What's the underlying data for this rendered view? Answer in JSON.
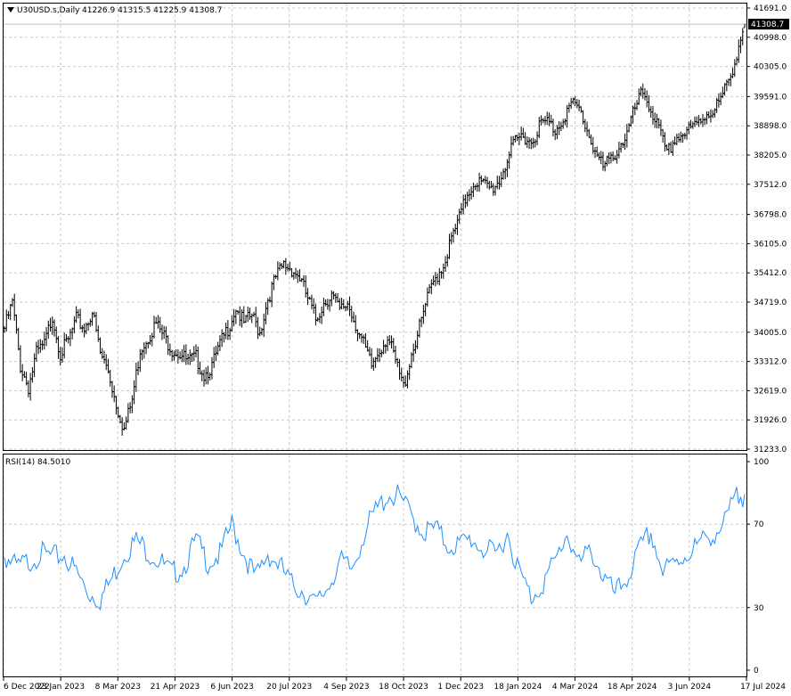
{
  "symbol_title": "U30USD.s,Daily",
  "ohlc_text": "41226.9 41315.5 41225.9 41308.7",
  "last_price_label": "41308.7",
  "rsi_title": "RSI(14) 84.5010",
  "colors": {
    "bars": "#000000",
    "rsi_line": "#1e90ff",
    "grid": "#c8c8c8",
    "price_tag_bg": "#000000",
    "price_tag_text": "#ffffff"
  },
  "chart_data": [
    {
      "type": "ohlc",
      "title": "U30USD.s,Daily",
      "y_ticks": [
        "41691.0",
        "40998.0",
        "40305.0",
        "39591.0",
        "38898.0",
        "38205.0",
        "37512.0",
        "36798.0",
        "36105.0",
        "35412.0",
        "34719.0",
        "34005.0",
        "33312.0",
        "32619.0",
        "31926.0",
        "31233.0"
      ],
      "ylim": [
        31233.0,
        41691.0
      ],
      "x_ticks": [
        "6 Dec 2022",
        "23 Jan 2023",
        "8 Mar 2023",
        "21 Apr 2023",
        "6 Jun 2023",
        "20 Jul 2023",
        "4 Sep 2023",
        "18 Oct 2023",
        "1 Dec 2023",
        "18 Jan 2024",
        "4 Mar 2024",
        "18 Apr 2024",
        "3 Jun 2024",
        "17 Jul 2024"
      ],
      "grid": true,
      "last": {
        "open": 41226.9,
        "high": 41315.5,
        "low": 41225.9,
        "close": 41308.7
      },
      "anchors": [
        [
          0,
          34100
        ],
        [
          4,
          34700
        ],
        [
          8,
          33200
        ],
        [
          12,
          32700
        ],
        [
          16,
          33500
        ],
        [
          20,
          33700
        ],
        [
          24,
          34400
        ],
        [
          28,
          33500
        ],
        [
          32,
          33800
        ],
        [
          36,
          34300
        ],
        [
          40,
          34100
        ],
        [
          44,
          34500
        ],
        [
          48,
          33500
        ],
        [
          52,
          33100
        ],
        [
          56,
          32300
        ],
        [
          60,
          31700
        ],
        [
          64,
          32400
        ],
        [
          68,
          33600
        ],
        [
          72,
          33900
        ],
        [
          76,
          34200
        ],
        [
          80,
          33900
        ],
        [
          84,
          33600
        ],
        [
          88,
          33500
        ],
        [
          92,
          33300
        ],
        [
          96,
          33400
        ],
        [
          100,
          33000
        ],
        [
          104,
          33200
        ],
        [
          108,
          33700
        ],
        [
          112,
          34100
        ],
        [
          116,
          34600
        ],
        [
          120,
          34200
        ],
        [
          124,
          34400
        ],
        [
          128,
          34000
        ],
        [
          132,
          34800
        ],
        [
          136,
          35300
        ],
        [
          140,
          35600
        ],
        [
          144,
          35500
        ],
        [
          148,
          35300
        ],
        [
          152,
          34800
        ],
        [
          156,
          34300
        ],
        [
          160,
          34700
        ],
        [
          164,
          34900
        ],
        [
          168,
          34500
        ],
        [
          172,
          34700
        ],
        [
          176,
          34200
        ],
        [
          180,
          33700
        ],
        [
          184,
          33200
        ],
        [
          188,
          33600
        ],
        [
          192,
          33900
        ],
        [
          196,
          33300
        ],
        [
          200,
          32700
        ],
        [
          204,
          33500
        ],
        [
          208,
          34100
        ],
        [
          212,
          34800
        ],
        [
          216,
          35300
        ],
        [
          220,
          35600
        ],
        [
          224,
          36200
        ],
        [
          228,
          36700
        ],
        [
          232,
          37300
        ],
        [
          236,
          37600
        ],
        [
          240,
          37500
        ],
        [
          244,
          37400
        ],
        [
          248,
          37600
        ],
        [
          252,
          38100
        ],
        [
          256,
          38500
        ],
        [
          260,
          38700
        ],
        [
          264,
          38500
        ],
        [
          268,
          38900
        ],
        [
          272,
          39000
        ],
        [
          276,
          38800
        ],
        [
          280,
          39100
        ],
        [
          284,
          39400
        ],
        [
          288,
          39300
        ],
        [
          292,
          38800
        ],
        [
          296,
          38300
        ],
        [
          300,
          37900
        ],
        [
          304,
          38100
        ],
        [
          308,
          38400
        ],
        [
          312,
          38700
        ],
        [
          316,
          39300
        ],
        [
          320,
          39700
        ],
        [
          324,
          39300
        ],
        [
          328,
          38800
        ],
        [
          332,
          38200
        ],
        [
          336,
          38600
        ],
        [
          340,
          38700
        ],
        [
          344,
          38800
        ],
        [
          348,
          39000
        ],
        [
          352,
          39200
        ],
        [
          356,
          39300
        ],
        [
          360,
          39600
        ],
        [
          364,
          40100
        ],
        [
          368,
          40800
        ],
        [
          371,
          41308.7
        ]
      ]
    },
    {
      "type": "line",
      "title": "RSI(14) 84.5010",
      "y_ticks": [
        "100",
        "70",
        "30",
        "0"
      ],
      "ylim": [
        0,
        100
      ],
      "grid": true,
      "anchors": [
        [
          0,
          55
        ],
        [
          6,
          49
        ],
        [
          12,
          52
        ],
        [
          18,
          56
        ],
        [
          24,
          54
        ],
        [
          30,
          55
        ],
        [
          36,
          47
        ],
        [
          42,
          37
        ],
        [
          48,
          34
        ],
        [
          54,
          44
        ],
        [
          60,
          56
        ],
        [
          66,
          62
        ],
        [
          72,
          57
        ],
        [
          78,
          52
        ],
        [
          84,
          46
        ],
        [
          90,
          50
        ],
        [
          96,
          62
        ],
        [
          102,
          52
        ],
        [
          108,
          55
        ],
        [
          114,
          70
        ],
        [
          120,
          56
        ],
        [
          126,
          44
        ],
        [
          132,
          56
        ],
        [
          138,
          50
        ],
        [
          144,
          41
        ],
        [
          150,
          38
        ],
        [
          156,
          31
        ],
        [
          162,
          40
        ],
        [
          168,
          52
        ],
        [
          174,
          48
        ],
        [
          180,
          65
        ],
        [
          186,
          76
        ],
        [
          192,
          84
        ],
        [
          198,
          83
        ],
        [
          204,
          74
        ],
        [
          210,
          66
        ],
        [
          216,
          68
        ],
        [
          222,
          60
        ],
        [
          228,
          60
        ],
        [
          234,
          63
        ],
        [
          240,
          58
        ],
        [
          246,
          55
        ],
        [
          252,
          66
        ],
        [
          258,
          47
        ],
        [
          264,
          35
        ],
        [
          270,
          42
        ],
        [
          276,
          52
        ],
        [
          282,
          66
        ],
        [
          288,
          50
        ],
        [
          294,
          58
        ],
        [
          300,
          45
        ],
        [
          306,
          36
        ],
        [
          312,
          44
        ],
        [
          318,
          57
        ],
        [
          324,
          66
        ],
        [
          330,
          47
        ],
        [
          336,
          51
        ],
        [
          342,
          56
        ],
        [
          348,
          60
        ],
        [
          354,
          65
        ],
        [
          360,
          68
        ],
        [
          366,
          82
        ],
        [
          371,
          84.5
        ]
      ]
    }
  ]
}
